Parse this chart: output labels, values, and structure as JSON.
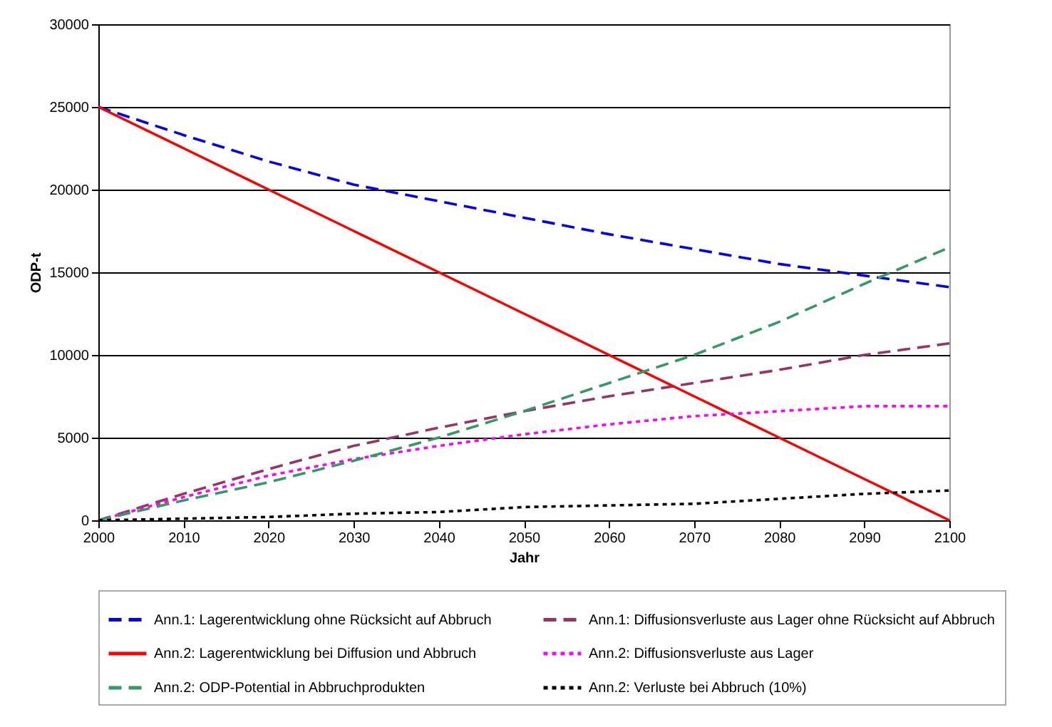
{
  "chart_data": {
    "type": "line",
    "xlabel": "Jahr",
    "ylabel": "ODP-t",
    "x": [
      2000,
      2010,
      2020,
      2030,
      2040,
      2050,
      2060,
      2070,
      2080,
      2090,
      2100
    ],
    "series": [
      {
        "name": "Ann.1: Lagerentwicklung ohne Rücksicht auf Abbruch",
        "color": "#0000ff",
        "line_style": "dashed",
        "values": [
          25000,
          23300,
          21700,
          20300,
          19300,
          18300,
          17300,
          16400,
          15500,
          14800,
          14100
        ]
      },
      {
        "name": "Ann.1: Diffusionsverluste aus Lager ohne Rücksicht auf Abbruch",
        "color": "#993366",
        "line_style": "dashed",
        "values": [
          0,
          1600,
          3100,
          4500,
          5600,
          6600,
          7500,
          8300,
          9100,
          10000,
          10700
        ]
      },
      {
        "name": "Ann.2: Lagerentwicklung  bei Diffusion und Abbruch",
        "color": "#ff0000",
        "line_style": "solid",
        "values": [
          25000,
          22500,
          20000,
          17500,
          15000,
          12500,
          10000,
          7500,
          5000,
          2500,
          0
        ]
      },
      {
        "name": "Ann.2: Diffusionsverluste aus Lager",
        "color": "#ff00ff",
        "line_style": "dotted",
        "values": [
          0,
          1400,
          2700,
          3700,
          4500,
          5200,
          5800,
          6300,
          6600,
          6900,
          6900
        ]
      },
      {
        "name": "Ann.2:  ODP-Potential in Abbruchprodukten",
        "color": "#339966",
        "line_style": "dashed",
        "values": [
          0,
          1200,
          2300,
          3600,
          5000,
          6600,
          8300,
          10000,
          12000,
          14300,
          16500
        ]
      },
      {
        "name": "Ann.2: Verluste bei Abbruch (10%)",
        "color": "#000000",
        "line_style": "dotted",
        "values": [
          0,
          100,
          200,
          400,
          500,
          800,
          900,
          1000,
          1300,
          1600,
          1800
        ]
      }
    ],
    "xlim": [
      2000,
      2100
    ],
    "xticks": [
      2000,
      2010,
      2020,
      2030,
      2040,
      2050,
      2060,
      2070,
      2080,
      2090,
      2100
    ],
    "ylim": [
      0,
      30000
    ],
    "yticks": [
      0,
      5000,
      10000,
      15000,
      20000,
      25000,
      30000
    ],
    "grid": "y",
    "legend": "bottom"
  }
}
